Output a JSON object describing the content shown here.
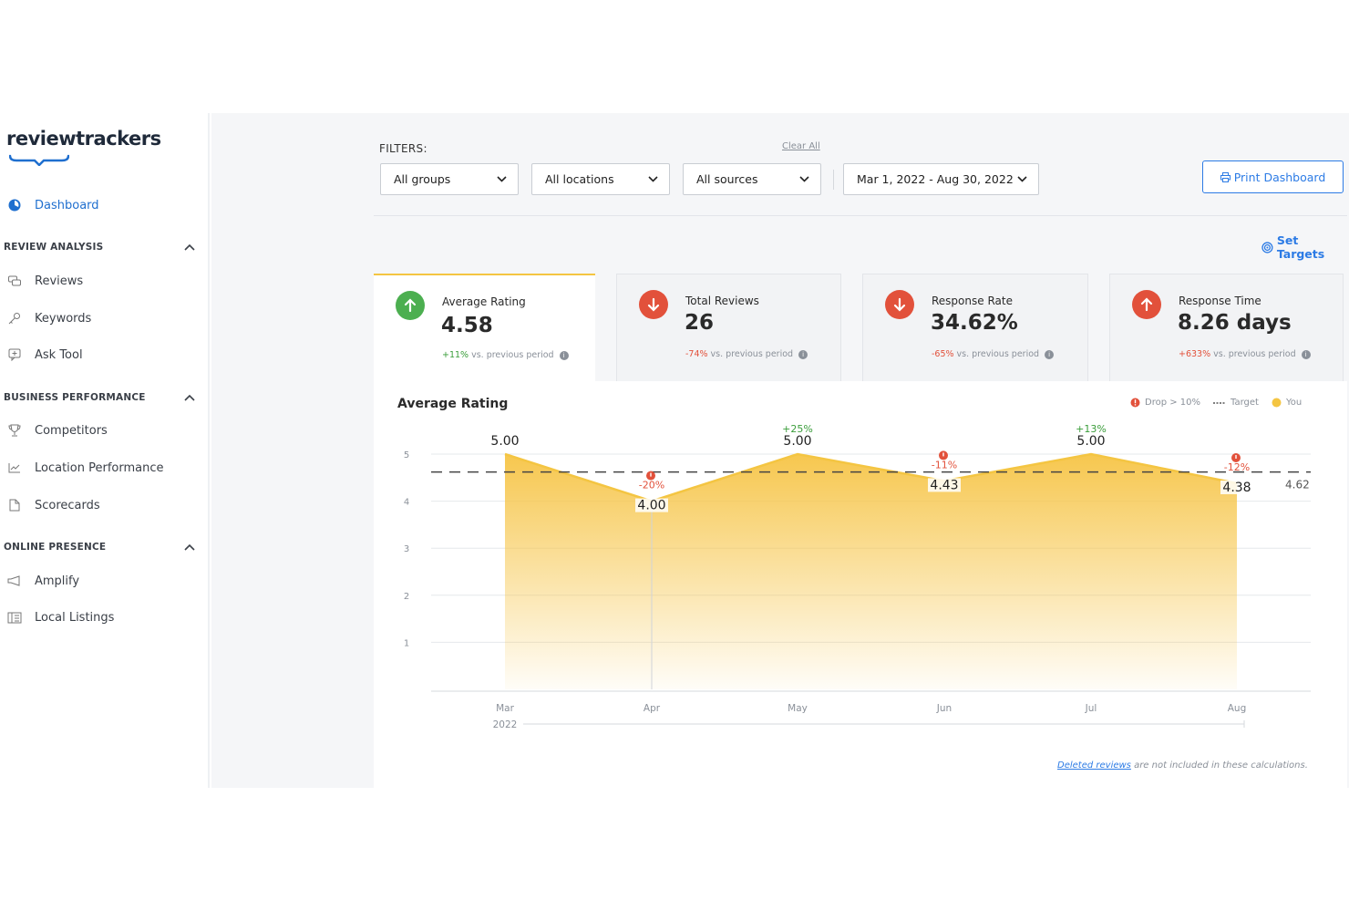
{
  "brand": {
    "logo_text": "reviewtrackers"
  },
  "sidebar": {
    "dashboard": "Dashboard",
    "sections": [
      {
        "title": "REVIEW ANALYSIS",
        "items": [
          "Reviews",
          "Keywords",
          "Ask Tool"
        ]
      },
      {
        "title": "BUSINESS PERFORMANCE",
        "items": [
          "Competitors",
          "Location Performance",
          "Scorecards"
        ]
      },
      {
        "title": "ONLINE PRESENCE",
        "items": [
          "Amplify",
          "Local Listings"
        ]
      }
    ]
  },
  "filters": {
    "label": "FILTERS:",
    "clear_all": "Clear All",
    "groups": "All groups",
    "locations": "All locations",
    "sources": "All sources",
    "date_range": "Mar 1, 2022 - Aug 30, 2022"
  },
  "actions": {
    "print": "Print Dashboard",
    "set_targets": "Set Targets"
  },
  "kpis": [
    {
      "title": "Average Rating",
      "value": "4.58",
      "change": "+11%",
      "suffix": "vs. previous period",
      "direction": "up",
      "color": "#4caf50"
    },
    {
      "title": "Total Reviews",
      "value": "26",
      "change": "-74%",
      "suffix": "vs. previous period",
      "direction": "down",
      "color": "#e2513b"
    },
    {
      "title": "Response Rate",
      "value": "34.62%",
      "change": "-65%",
      "suffix": "vs. previous period",
      "direction": "down",
      "color": "#e2513b"
    },
    {
      "title": "Response Time",
      "value": "8.26 days",
      "change": "+633%",
      "suffix": "vs. previous period",
      "direction": "up",
      "color": "#e2513b"
    }
  ],
  "chart_panel": {
    "title": "Average Rating",
    "legend": {
      "drop": "Drop > 10%",
      "target": "Target",
      "you": "You"
    },
    "footnote_link": "Deleted reviews",
    "footnote_rest": " are not included in these calculations."
  },
  "chart_data": {
    "type": "area",
    "title": "Average Rating",
    "categories": [
      "Mar",
      "Apr",
      "May",
      "Jun",
      "Jul",
      "Aug"
    ],
    "year_label": "2022",
    "series": [
      {
        "name": "You",
        "values": [
          5.0,
          4.0,
          5.0,
          4.43,
          5.0,
          4.38
        ],
        "color": "#f4c542"
      }
    ],
    "value_labels": [
      "5.00",
      "4.00",
      "5.00",
      "4.43",
      "5.00",
      "4.38"
    ],
    "changes": [
      "",
      "-20%",
      "+25%",
      "-11%",
      "+13%",
      "-12%"
    ],
    "drops": [
      false,
      true,
      false,
      true,
      false,
      true
    ],
    "target": 4.62,
    "target_label": "4.62",
    "ylim": [
      0,
      5
    ],
    "yticks": [
      1,
      2,
      3,
      4,
      5
    ],
    "grid": true,
    "legend_position": "top-right",
    "colors": {
      "drop": "#e2513b",
      "rise": "#3a9d3a",
      "line": "#f4c542"
    }
  }
}
